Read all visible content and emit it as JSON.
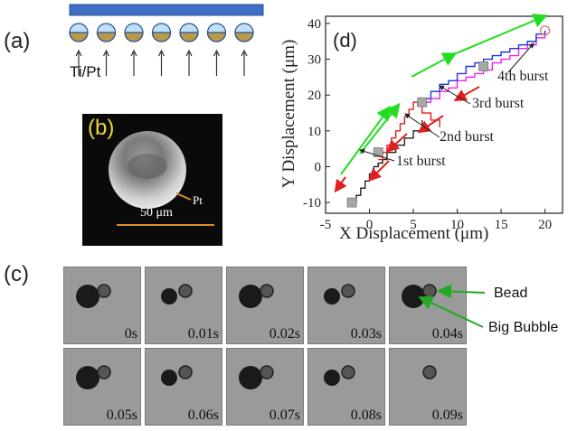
{
  "panel_a": {
    "label": "(a)",
    "material_label": "Ti/Pt",
    "bead_count": 7
  },
  "panel_b": {
    "label": "(b)",
    "pt_label": "Pt",
    "scale_bar": "50 μm"
  },
  "panel_c": {
    "label": "(c)",
    "frames_top": [
      "0s",
      "0.01s",
      "0.02s",
      "0.03s",
      "0.04s"
    ],
    "frames_bottom": [
      "0.05s",
      "0.06s",
      "0.07s",
      "0.08s",
      "0.09s"
    ],
    "bead_label": "Bead",
    "bubble_label": "Big Bubble"
  },
  "chart_data": {
    "type": "line",
    "panel_label": "(d)",
    "xlabel": "X Displacement (μm)",
    "ylabel": "Y Displacement (μm)",
    "xlim": [
      -5,
      22
    ],
    "ylim": [
      -13,
      42
    ],
    "xticks": [
      "-5",
      "0",
      "5",
      "10",
      "15",
      "20"
    ],
    "yticks": [
      "-10",
      "0",
      "10",
      "20",
      "30",
      "40"
    ],
    "annotations": [
      "1st burst",
      "2nd burst",
      "3rd burst",
      "4th burst"
    ],
    "series": [
      {
        "color": "#222222",
        "x": [
          -2,
          -1.5,
          -1,
          -0.5,
          0,
          0.5,
          1,
          1.5,
          2,
          3,
          4,
          5,
          6
        ],
        "y": [
          -10,
          -8,
          -6,
          -4,
          -2,
          0,
          1,
          2,
          4,
          6,
          8,
          10,
          13
        ]
      },
      {
        "color": "#e02020",
        "x": [
          1,
          1.5,
          2,
          2.5,
          3,
          3.5,
          4,
          4.5,
          5,
          5.5,
          6,
          7,
          8
        ],
        "y": [
          2,
          4,
          6,
          8,
          10,
          12,
          14,
          16,
          18,
          17,
          15,
          13,
          11
        ]
      },
      {
        "color": "#ee22ee",
        "x": [
          6,
          7,
          8,
          9,
          10,
          11,
          12,
          13,
          14,
          15,
          16,
          17,
          18,
          19,
          20
        ],
        "y": [
          18,
          19,
          21,
          22,
          24,
          25,
          26,
          27,
          29,
          30,
          31,
          33,
          34,
          36,
          38
        ]
      },
      {
        "color": "#2233dd",
        "x": [
          6,
          7,
          8,
          9,
          10,
          11,
          12,
          13,
          14,
          15,
          16,
          17,
          18,
          19,
          20
        ],
        "y": [
          19,
          21,
          23,
          24,
          26,
          28,
          29,
          30,
          31,
          32,
          33,
          34,
          35,
          37,
          38
        ]
      }
    ],
    "markers": [
      {
        "x": -2,
        "y": -10
      },
      {
        "x": 1,
        "y": 4
      },
      {
        "x": 6,
        "y": 18
      },
      {
        "x": 13,
        "y": 28
      }
    ],
    "end_circle": {
      "x": 20,
      "y": 38
    }
  }
}
